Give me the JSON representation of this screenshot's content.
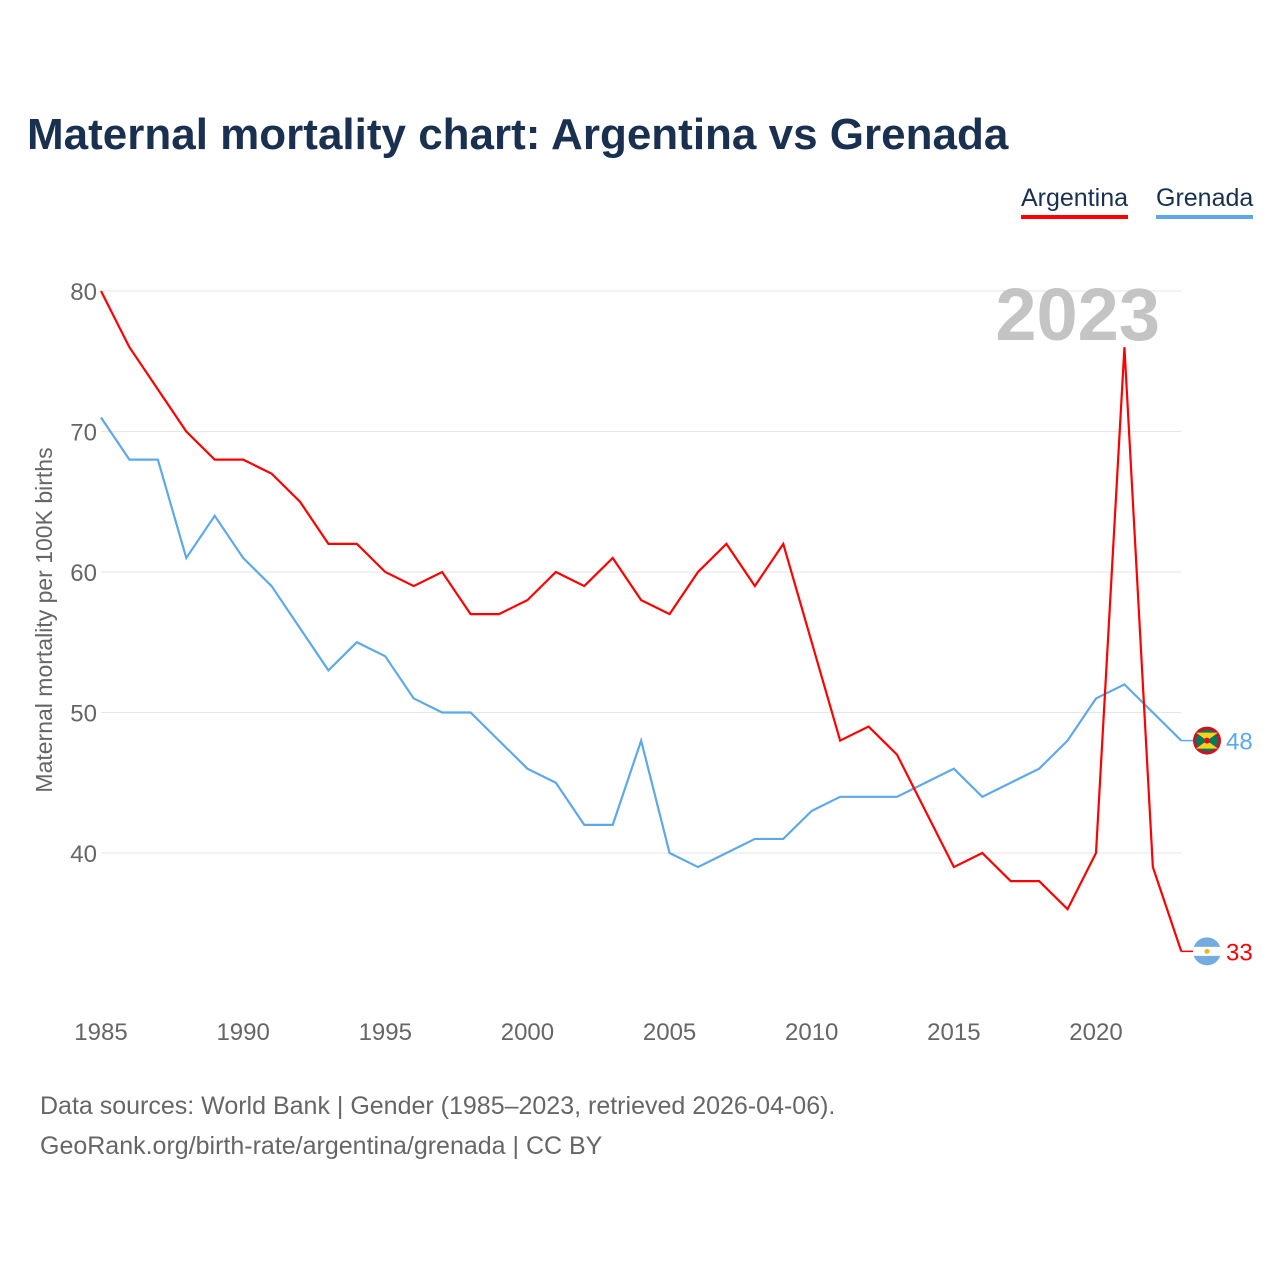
{
  "title": "Maternal mortality chart: Argentina vs Grenada",
  "footer": {
    "line1": "Data sources: World Bank | Gender (1985–2023, retrieved 2026-04-06).",
    "line2": "GeoRank.org/birth-rate/argentina/grenada | CC BY"
  },
  "chart_data": {
    "type": "line",
    "title": "Maternal mortality chart: Argentina vs Grenada",
    "ylabel": "Maternal mortality per 100K births",
    "xlabel": "",
    "year_label": "2023",
    "ylim": [
      30,
      80
    ],
    "xlim": [
      1985,
      2023
    ],
    "yticks": [
      40,
      50,
      60,
      70,
      80
    ],
    "xticks": [
      1985,
      1990,
      1995,
      2000,
      2005,
      2010,
      2015,
      2020
    ],
    "grid": true,
    "legend_placement": "top-right",
    "x": [
      1985,
      1986,
      1987,
      1988,
      1989,
      1990,
      1991,
      1992,
      1993,
      1994,
      1995,
      1996,
      1997,
      1998,
      1999,
      2000,
      2001,
      2002,
      2003,
      2004,
      2005,
      2006,
      2007,
      2008,
      2009,
      2010,
      2011,
      2012,
      2013,
      2014,
      2015,
      2016,
      2017,
      2018,
      2019,
      2020,
      2021,
      2022,
      2023
    ],
    "series": [
      {
        "name": "Argentina",
        "color": "#ff0000",
        "end_label": "33",
        "values": [
          80,
          76,
          73,
          70,
          68,
          68,
          67,
          65,
          62,
          62,
          60,
          59,
          60,
          57,
          57,
          58,
          60,
          59,
          61,
          58,
          57,
          60,
          62,
          59,
          62,
          55,
          48,
          49,
          47,
          43,
          39,
          40,
          38,
          38,
          36,
          40,
          76,
          39,
          33
        ]
      },
      {
        "name": "Grenada",
        "color": "#5fa8e8",
        "end_label": "48",
        "values": [
          71,
          68,
          68,
          61,
          64,
          61,
          59,
          56,
          53,
          55,
          54,
          51,
          50,
          50,
          48,
          46,
          45,
          42,
          42,
          48,
          40,
          39,
          40,
          41,
          41,
          43,
          44,
          44,
          44,
          45,
          46,
          44,
          45,
          46,
          48,
          51,
          52,
          50,
          48
        ]
      }
    ]
  }
}
